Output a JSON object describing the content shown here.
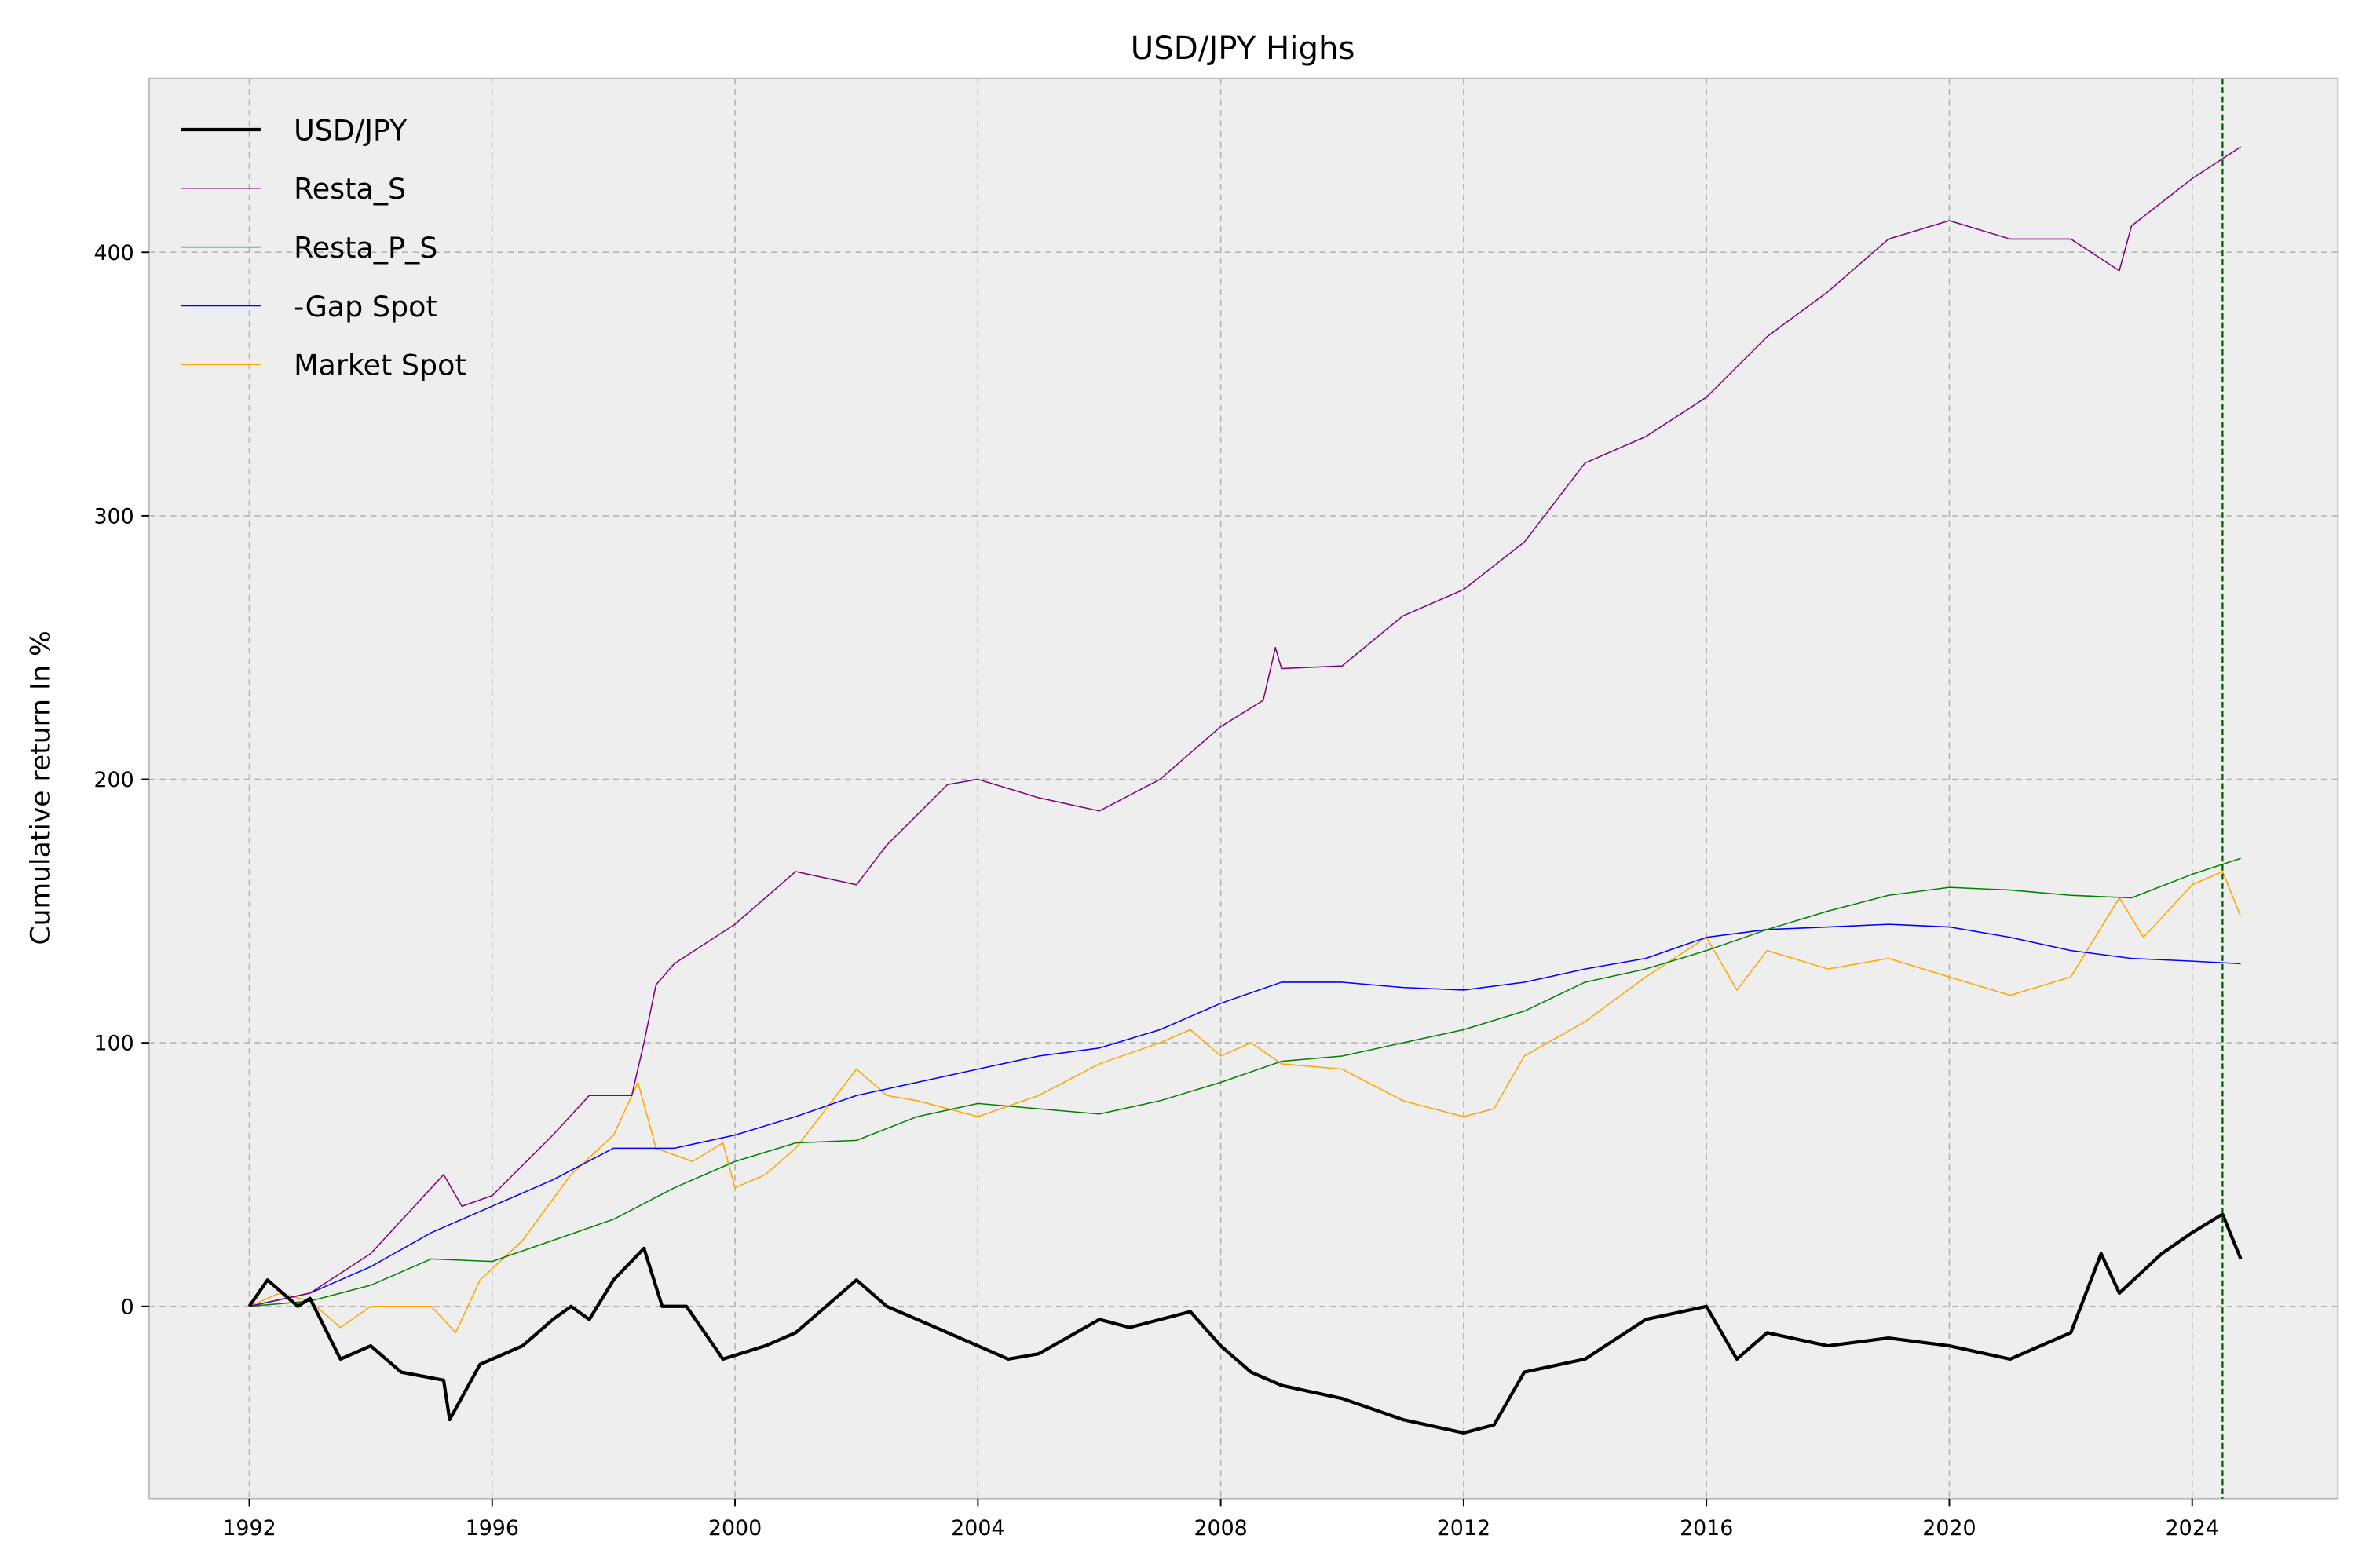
{
  "chart_data": {
    "type": "line",
    "title": "USD/JPY Highs",
    "xlabel": "",
    "ylabel": "Cumulative return In %",
    "xlim": [
      1990.35,
      2026.4
    ],
    "ylim": [
      -73,
      466
    ],
    "xticks": [
      1992,
      1996,
      2000,
      2004,
      2008,
      2012,
      2016,
      2020,
      2024
    ],
    "yticks": [
      0,
      100,
      200,
      300,
      400
    ],
    "grid": true,
    "legend_position": "top-left",
    "vline": {
      "x": 2024.5,
      "color": "#006400",
      "style": "dashed"
    },
    "series": [
      {
        "name": "USD/JPY",
        "color": "#000000",
        "x": [
          1992,
          1992.3,
          1992.8,
          1993,
          1993.5,
          1994,
          1994.5,
          1995.2,
          1995.3,
          1995.8,
          1996.5,
          1997,
          1997.3,
          1997.6,
          1998,
          1998.5,
          1998.8,
          1999.2,
          1999.8,
          2000.5,
          2001,
          2001.5,
          2002,
          2002.5,
          2003,
          2004,
          2004.5,
          2005,
          2006,
          2006.5,
          2007.5,
          2008,
          2008.5,
          2009,
          2010,
          2011,
          2012,
          2012.5,
          2013,
          2014,
          2015,
          2016,
          2016.5,
          2017,
          2018,
          2019,
          2020,
          2021,
          2022,
          2022.5,
          2022.8,
          2023.5,
          2024,
          2024.5,
          2024.8
        ],
        "y": [
          0,
          10,
          0,
          3,
          -20,
          -15,
          -25,
          -28,
          -43,
          -22,
          -15,
          -5,
          0,
          -5,
          10,
          22,
          0,
          0,
          -20,
          -15,
          -10,
          0,
          10,
          0,
          -5,
          -15,
          -20,
          -18,
          -5,
          -8,
          -2,
          -15,
          -25,
          -30,
          -35,
          -43,
          -48,
          -45,
          -25,
          -20,
          -5,
          0,
          -20,
          -10,
          -15,
          -12,
          -15,
          -20,
          -10,
          20,
          5,
          20,
          28,
          35,
          18
        ]
      },
      {
        "name": "Resta_S",
        "color": "#800080",
        "x": [
          1992,
          1993,
          1994,
          1995.2,
          1995.5,
          1996,
          1997,
          1997.6,
          1998.3,
          1998.5,
          1998.7,
          1999,
          2000,
          2001,
          2002,
          2002.5,
          2003.5,
          2004,
          2005,
          2006,
          2007,
          2008,
          2008.7,
          2008.9,
          2009,
          2010,
          2011,
          2012,
          2013,
          2014,
          2015,
          2016,
          2017,
          2018,
          2019,
          2020,
          2021,
          2022,
          2022.8,
          2023,
          2024,
          2024.8
        ],
        "y": [
          0,
          5,
          20,
          50,
          38,
          42,
          65,
          80,
          80,
          100,
          122,
          130,
          145,
          165,
          160,
          175,
          198,
          200,
          193,
          188,
          200,
          220,
          230,
          250,
          242,
          243,
          262,
          272,
          290,
          320,
          330,
          345,
          368,
          385,
          405,
          412,
          405,
          405,
          393,
          410,
          428,
          440
        ]
      },
      {
        "name": "Resta_P_S",
        "color": "#008000",
        "x": [
          1992,
          1993,
          1994,
          1995,
          1996,
          1997,
          1998,
          1999,
          2000,
          2001,
          2002,
          2003,
          2004,
          2005,
          2006,
          2007,
          2008,
          2009,
          2010,
          2011,
          2012,
          2013,
          2014,
          2015,
          2016,
          2017,
          2018,
          2019,
          2020,
          2021,
          2022,
          2023,
          2024,
          2024.8
        ],
        "y": [
          0,
          2,
          8,
          18,
          17,
          25,
          33,
          45,
          55,
          62,
          63,
          72,
          77,
          75,
          73,
          78,
          85,
          93,
          95,
          100,
          105,
          112,
          123,
          128,
          135,
          143,
          150,
          156,
          159,
          158,
          156,
          155,
          164,
          170
        ]
      },
      {
        "name": "-Gap Spot",
        "color": "#0000ff",
        "x": [
          1992,
          1993,
          1994,
          1995,
          1996,
          1997,
          1998,
          1999,
          2000,
          2001,
          2002,
          2003,
          2004,
          2005,
          2006,
          2007,
          2008,
          2009,
          2010,
          2011,
          2012,
          2013,
          2014,
          2015,
          2016,
          2017,
          2018,
          2019,
          2020,
          2021,
          2022,
          2023,
          2024,
          2024.8
        ],
        "y": [
          0,
          5,
          15,
          28,
          38,
          48,
          60,
          60,
          65,
          72,
          80,
          85,
          90,
          95,
          98,
          105,
          115,
          123,
          123,
          121,
          120,
          123,
          128,
          132,
          140,
          143,
          144,
          145,
          144,
          140,
          135,
          132,
          131,
          130
        ]
      },
      {
        "name": "Market Spot",
        "color": "#ffa500",
        "x": [
          1992,
          1992.5,
          1993,
          1993.5,
          1994,
          1995,
          1995.4,
          1995.8,
          1996.5,
          1997.3,
          1998,
          1998.4,
          1998.7,
          1999.3,
          1999.8,
          2000,
          2000.5,
          2001,
          2001.5,
          2002,
          2002.5,
          2003,
          2004,
          2005,
          2006,
          2007,
          2007.5,
          2008,
          2008.5,
          2009,
          2010,
          2011,
          2012,
          2012.5,
          2013,
          2014,
          2015,
          2016,
          2016.5,
          2017,
          2018,
          2019,
          2020,
          2021,
          2022,
          2022.8,
          2023.2,
          2024,
          2024.5,
          2024.8
        ],
        "y": [
          0,
          5,
          2,
          -8,
          0,
          0,
          -10,
          10,
          25,
          50,
          65,
          85,
          60,
          55,
          62,
          45,
          50,
          60,
          75,
          90,
          80,
          78,
          72,
          80,
          92,
          100,
          105,
          95,
          100,
          92,
          90,
          78,
          72,
          75,
          95,
          108,
          125,
          140,
          120,
          135,
          128,
          132,
          125,
          118,
          125,
          155,
          140,
          160,
          165,
          148
        ]
      }
    ]
  }
}
